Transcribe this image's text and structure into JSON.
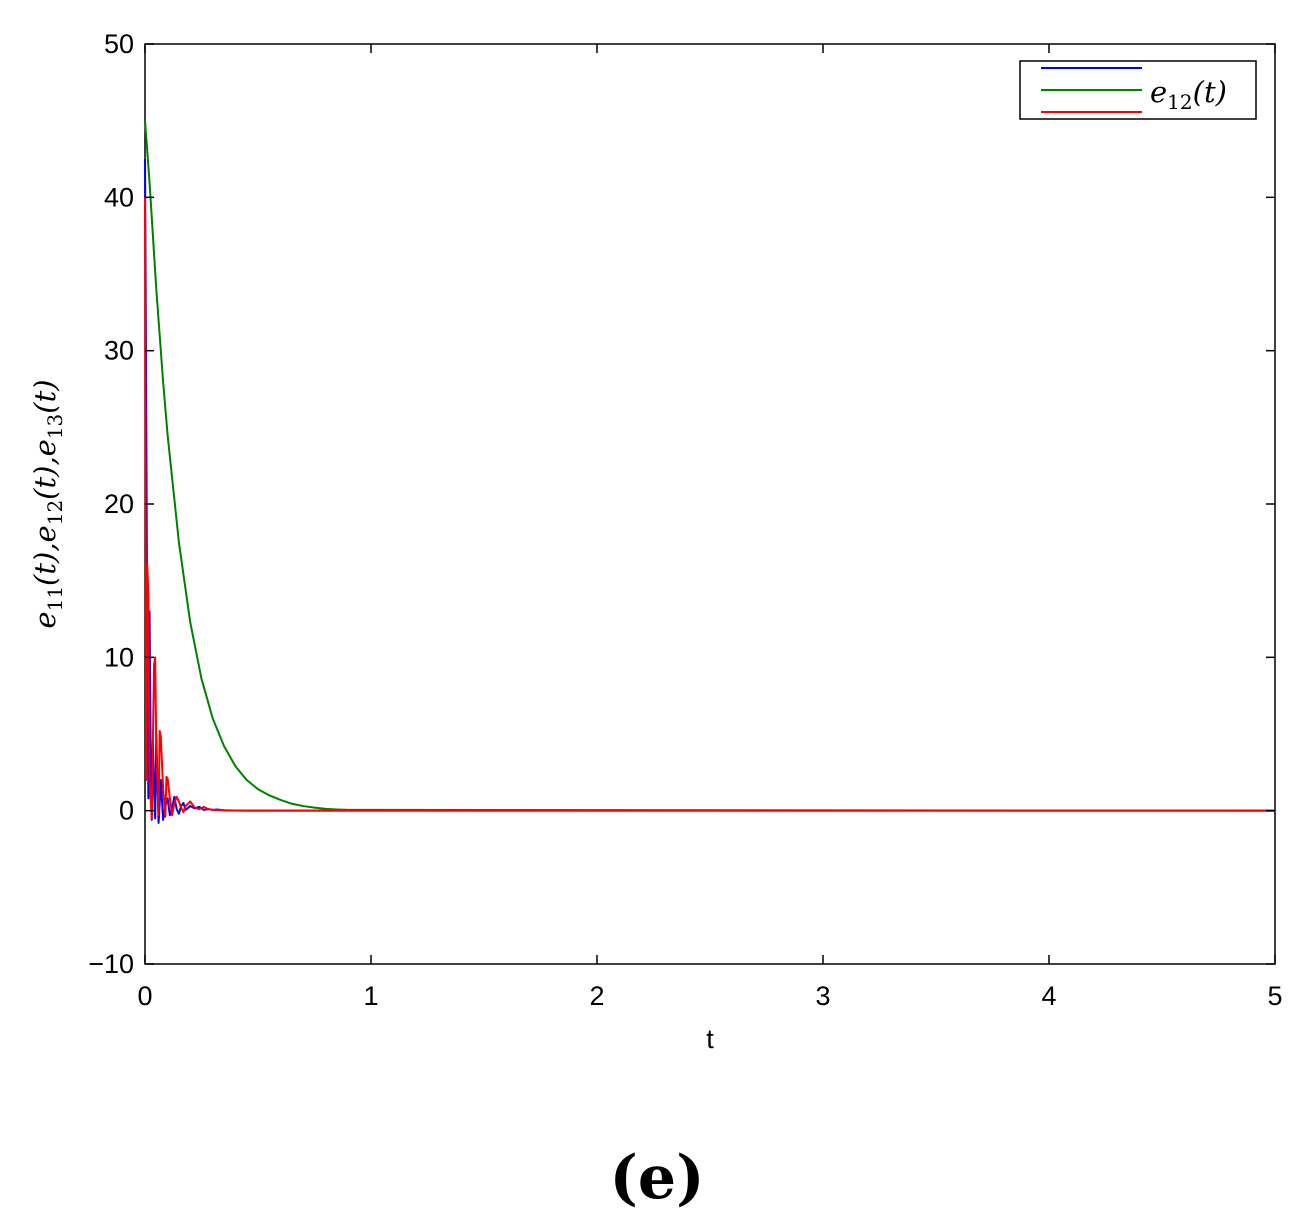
{
  "chart_data": {
    "type": "line",
    "xlabel": "t",
    "ylabel": "e11(t), e12(t), e13(t)",
    "ylabel_parts": [
      {
        "base": "e",
        "sub": "11",
        "arg": "(t),"
      },
      {
        "base": "e",
        "sub": "12",
        "arg": "(t),"
      },
      {
        "base": "e",
        "sub": "13",
        "arg": "(t)"
      }
    ],
    "xlim": [
      0,
      5
    ],
    "ylim": [
      -10,
      50
    ],
    "xticks": [
      0,
      1,
      2,
      3,
      4,
      5
    ],
    "yticks": [
      -10,
      0,
      10,
      20,
      30,
      40,
      50
    ],
    "xtick_labels": [
      "0",
      "1",
      "2",
      "3",
      "4",
      "5"
    ],
    "ytick_labels": [
      "−10",
      "0",
      "10",
      "20",
      "30",
      "40",
      "50"
    ],
    "grid": false,
    "legend": {
      "placement": "top-right",
      "visible_text": {
        "base": "e",
        "sub": "12",
        "arg": "(t)"
      }
    },
    "series": [
      {
        "color": "#0000ff",
        "x": [
          0,
          0.005,
          0.01,
          0.015,
          0.02,
          0.025,
          0.03,
          0.035,
          0.04,
          0.045,
          0.05,
          0.055,
          0.06,
          0.065,
          0.07,
          0.08,
          0.09,
          0.1,
          0.11,
          0.12,
          0.13,
          0.14,
          0.15,
          0.16,
          0.17,
          0.18,
          0.2,
          0.22,
          0.24,
          0.26,
          0.28,
          0.3,
          0.32,
          0.35,
          0.4,
          0.45,
          5
        ],
        "y": [
          42.5,
          28,
          10,
          0.8,
          13,
          4,
          -0.6,
          4.5,
          1.5,
          -0.5,
          5,
          2,
          -0.8,
          0.5,
          2,
          -0.6,
          0.3,
          0.8,
          -0.3,
          0.2,
          0.9,
          0.1,
          -0.2,
          0.3,
          0.5,
          0.05,
          0.3,
          0.15,
          0.25,
          0.05,
          0.1,
          0.05,
          0.08,
          0.02,
          0.01,
          0,
          0
        ]
      },
      {
        "color": "#008000",
        "x": [
          0,
          0.02,
          0.05,
          0.08,
          0.1,
          0.15,
          0.2,
          0.25,
          0.3,
          0.35,
          0.4,
          0.45,
          0.5,
          0.55,
          0.6,
          0.65,
          0.7,
          0.75,
          0.8,
          0.85,
          0.9,
          5
        ],
        "y": [
          45,
          41,
          34,
          28,
          24.5,
          17.5,
          12.3,
          8.6,
          6,
          4.2,
          2.9,
          2,
          1.4,
          1,
          0.7,
          0.45,
          0.3,
          0.2,
          0.12,
          0.08,
          0.05,
          0
        ]
      },
      {
        "color": "#ff0000",
        "x": [
          0,
          0.005,
          0.01,
          0.015,
          0.02,
          0.03,
          0.04,
          0.045,
          0.05,
          0.06,
          0.065,
          0.07,
          0.08,
          0.09,
          0.095,
          0.1,
          0.11,
          0.12,
          0.13,
          0.14,
          0.15,
          0.16,
          0.17,
          0.18,
          0.2,
          0.22,
          0.24,
          0.26,
          0.28,
          0.3,
          0.35,
          0.4,
          0.45,
          5
        ],
        "y": [
          40,
          2,
          16,
          14,
          2,
          -0.5,
          9.5,
          10,
          4,
          -0.3,
          5.2,
          4.8,
          1.5,
          -0.4,
          2.2,
          2.1,
          0.8,
          -0.3,
          0.5,
          0.9,
          0.6,
          0.2,
          -0.1,
          0.3,
          0.6,
          0.2,
          0.1,
          0.25,
          0.1,
          0.05,
          0.03,
          0.01,
          0,
          0
        ]
      }
    ]
  },
  "caption": "(e)"
}
